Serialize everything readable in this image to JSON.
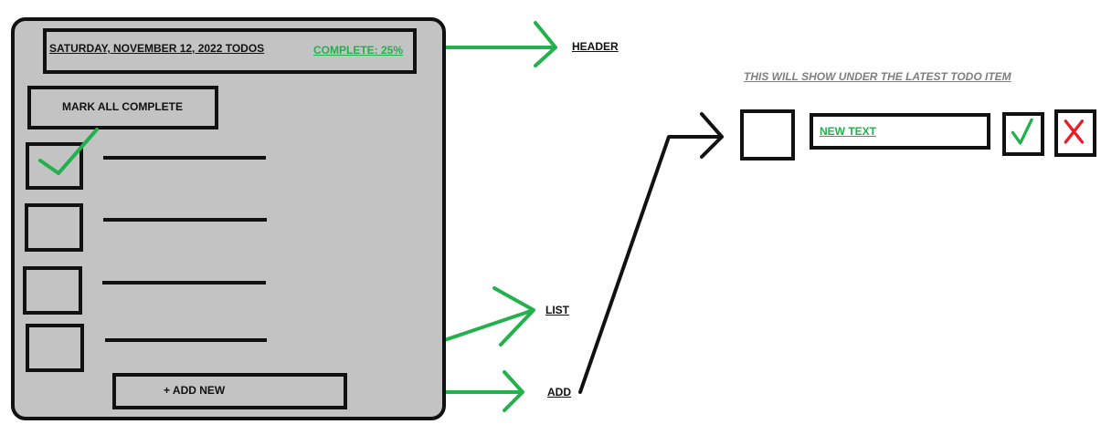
{
  "mockup": {
    "header": {
      "title": "SATURDAY, NOVEMBER 12, 2022 TODOS",
      "complete_label": "COMPLETE: 25%",
      "complete_percent": 25
    },
    "mark_all_label": "MARK ALL COMPLETE",
    "todos": [
      {
        "checked": true
      },
      {
        "checked": false
      },
      {
        "checked": false
      },
      {
        "checked": false
      }
    ],
    "add_new_label": "+ ADD NEW"
  },
  "annotations": {
    "header": "HEADER",
    "list": "LIST",
    "add": "ADD",
    "note": "THIS WILL SHOW UNDER THE LATEST TODO ITEM"
  },
  "new_item_preview": {
    "text": "NEW TEXT",
    "confirm_icon": "check-icon",
    "cancel_icon": "x-icon"
  },
  "colors": {
    "panel": "#c3c3c3",
    "outline": "#111111",
    "arrow_green": "#22b14c",
    "cancel_red": "#ed1c24",
    "note_gray": "#7f7f7f"
  }
}
